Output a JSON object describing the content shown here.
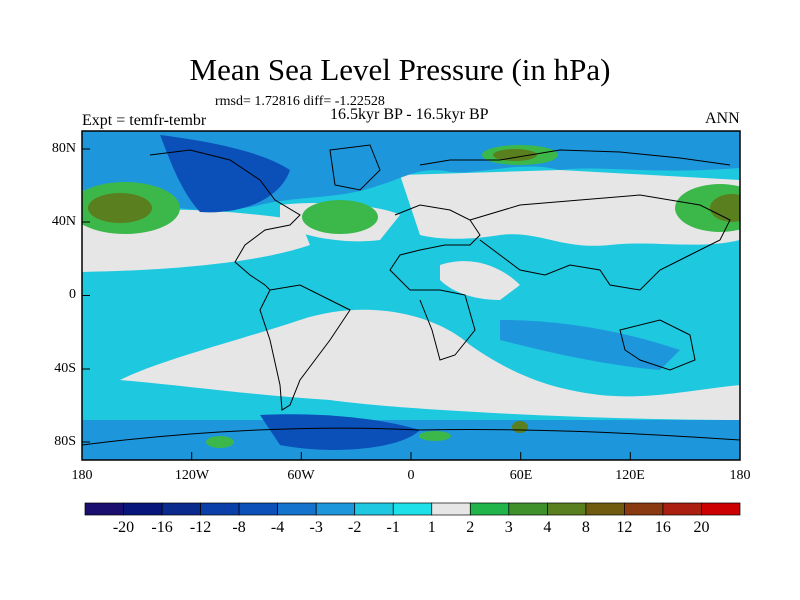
{
  "title": "Mean Sea Level Pressure (in hPa)",
  "stats": "rmsd= 1.72816 diff= -1.22528",
  "subtitle": "16.5kyr BP - 16.5kyr BP",
  "experiment": "Expt = temfr-tembr",
  "season": "ANN",
  "lat_labels": [
    "80N",
    "40N",
    "0",
    "40S",
    "80S"
  ],
  "lon_labels": [
    "180",
    "120W",
    "60W",
    "0",
    "60E",
    "120E",
    "180"
  ],
  "colorbar": {
    "labels": [
      "-20",
      "-16",
      "-12",
      "-8",
      "-4",
      "-3",
      "-2",
      "-1",
      "1",
      "2",
      "3",
      "4",
      "8",
      "12",
      "16",
      "20"
    ],
    "colors": [
      "#1a0f6e",
      "#08157a",
      "#0b2a8e",
      "#0a3ea8",
      "#0a50b8",
      "#1473cc",
      "#1e96dc",
      "#1ec8e0",
      "#1ee0e8",
      "#e6e6e6",
      "#20b44a",
      "#3f8f2a",
      "#5a7f1e",
      "#6f5a10",
      "#8a3a10",
      "#aa1f10",
      "#cc0000"
    ]
  },
  "palette": {
    "cyan": "#1ec8df",
    "gray": "#e6e6e6",
    "blue": "#1e96dc",
    "dark_blue": "#0a50b8",
    "green": "#3cb84a",
    "olive": "#5a7f1e"
  }
}
